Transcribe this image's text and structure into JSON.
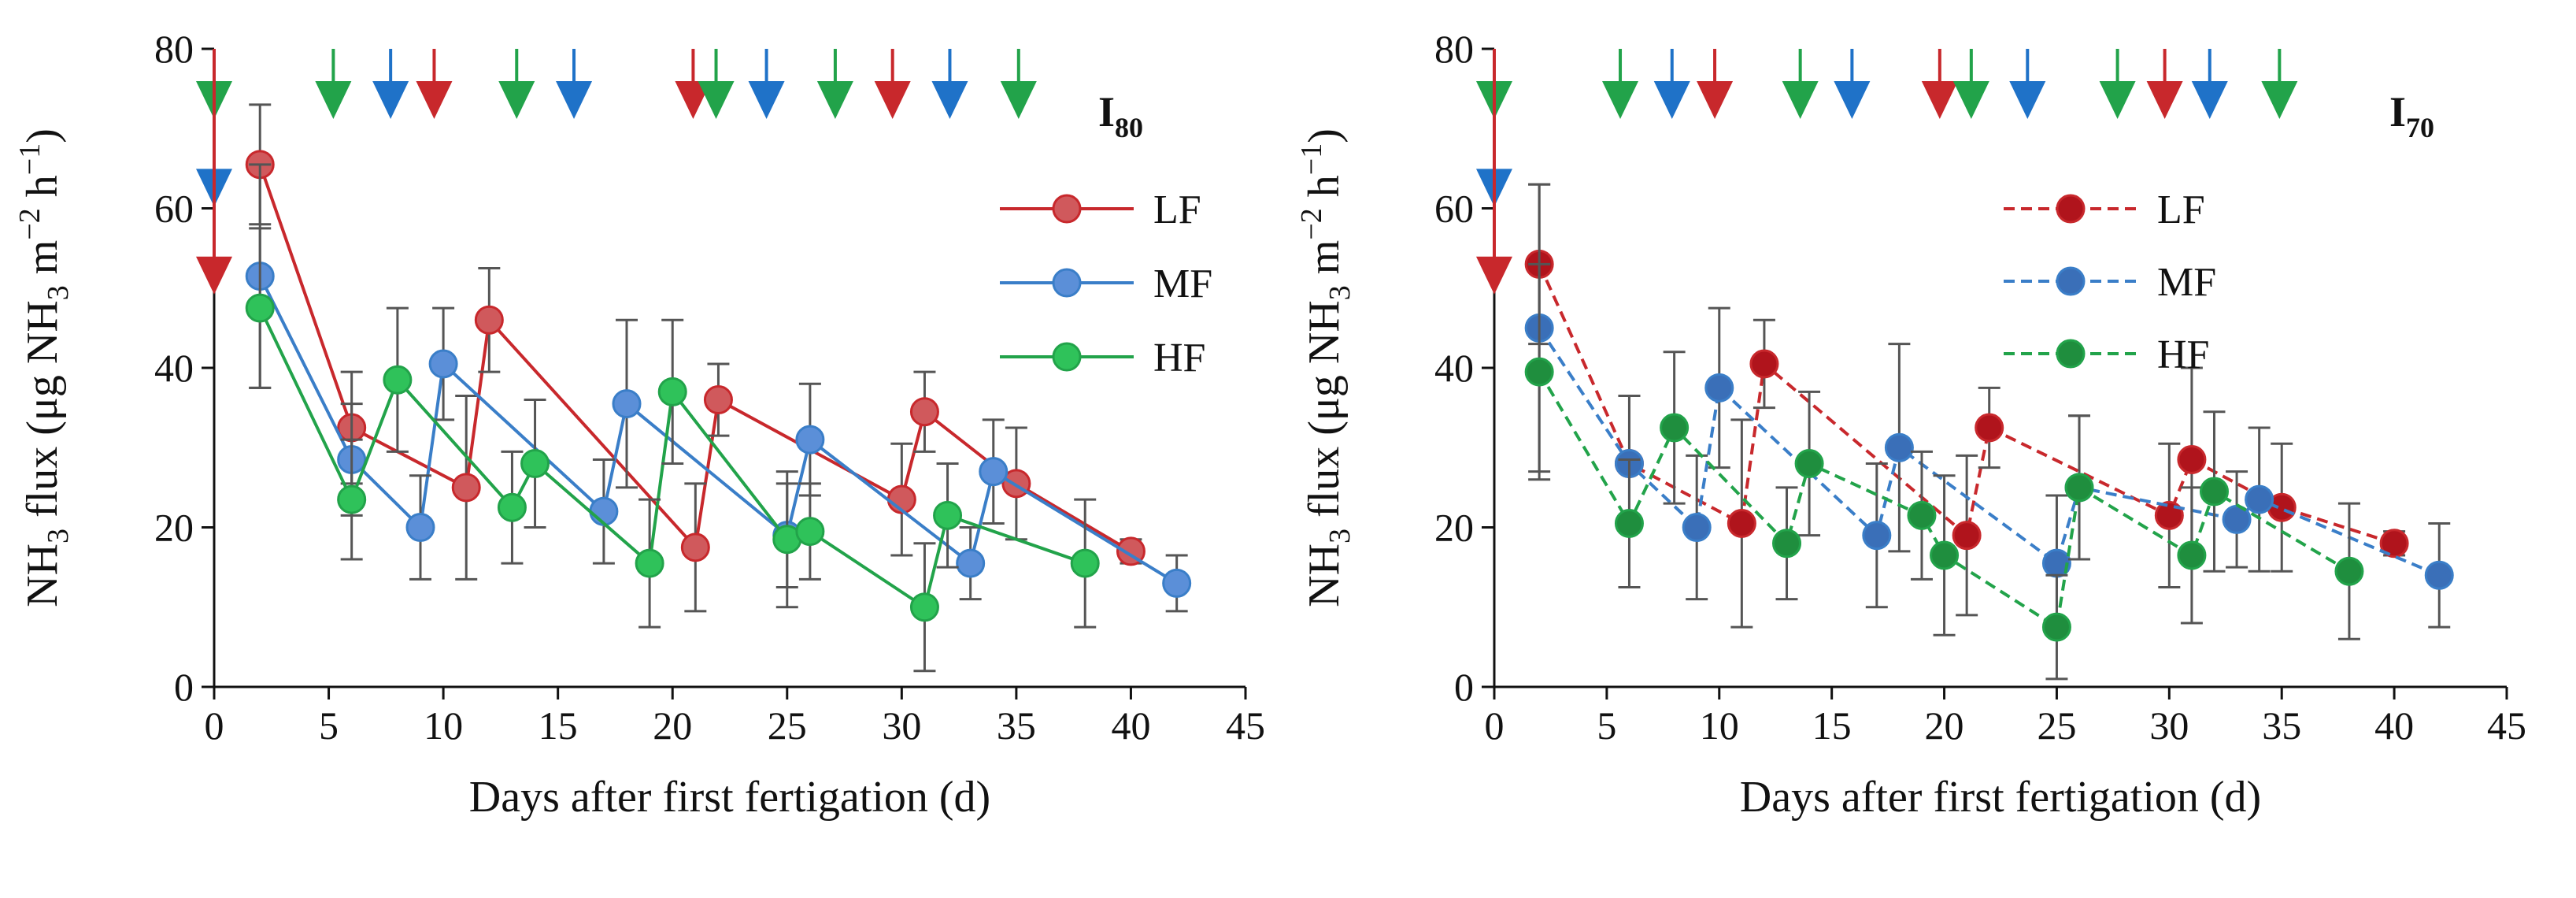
{
  "chart_data": [
    {
      "type": "line",
      "panel_label": "I",
      "panel_label_sub": "80",
      "xlabel": "Days after first fertigation (d)",
      "ylabel": {
        "part1": "NH",
        "sub1": "3",
        "part2": " flux (μg NH",
        "sub2": "3",
        "part3": " m",
        "sup1": "−2",
        "part4": " h",
        "sup2": "−1",
        "part5": ")"
      },
      "xlim": [
        0,
        45
      ],
      "ylim": [
        0,
        80
      ],
      "xticks": [
        0,
        5,
        10,
        15,
        20,
        25,
        30,
        35,
        40,
        45
      ],
      "yticks": [
        0,
        20,
        40,
        60,
        80
      ],
      "legend_position": "top-right",
      "line_style": "solid",
      "series": [
        {
          "name": "LF",
          "color": "#c8282c",
          "fill": "#d0595c",
          "x": [
            2,
            6,
            11,
            12,
            21,
            22,
            30,
            31,
            35,
            40
          ],
          "y": [
            65.5,
            32.5,
            25,
            46,
            17.5,
            36,
            23.5,
            34.5,
            25.5,
            17
          ],
          "err": [
            7.5,
            7,
            11.5,
            6.5,
            8,
            4.5,
            7,
            5,
            7,
            1.5
          ]
        },
        {
          "name": "MF",
          "color": "#3a7ec8",
          "fill": "#5b8fd8",
          "x": [
            2,
            6,
            9,
            10,
            17,
            18,
            25,
            26,
            33,
            34,
            42
          ],
          "y": [
            51.5,
            28.5,
            20,
            40.5,
            22,
            35.5,
            19,
            31,
            15.5,
            27,
            13
          ],
          "err": [
            14,
            7,
            6.5,
            7,
            6.5,
            10.5,
            6.5,
            7,
            4.5,
            6.5,
            3.5
          ]
        },
        {
          "name": "HF",
          "color": "#22a34a",
          "fill": "#2fc25a",
          "x": [
            2,
            6,
            8,
            13,
            14,
            19,
            20,
            25,
            26,
            31,
            32,
            38
          ],
          "y": [
            47.5,
            23.5,
            38.5,
            22.5,
            28,
            15.5,
            37,
            18.5,
            19.5,
            10,
            21.5,
            15.5
          ],
          "err": [
            10,
            7.5,
            9,
            7,
            8,
            8,
            9,
            8.5,
            6,
            8,
            6.5,
            8
          ]
        }
      ],
      "arrows": [
        {
          "day": 0,
          "color": "#22a34a",
          "tip": 72
        },
        {
          "day": 0,
          "color": "#1f72c8",
          "tip": 61
        },
        {
          "day": 0,
          "color": "#c8282c",
          "tip": 50
        },
        {
          "day": 5.2,
          "color": "#22a34a",
          "tip": 72
        },
        {
          "day": 7.7,
          "color": "#1f72c8",
          "tip": 72
        },
        {
          "day": 9.6,
          "color": "#c8282c",
          "tip": 72
        },
        {
          "day": 13.2,
          "color": "#22a34a",
          "tip": 72
        },
        {
          "day": 15.7,
          "color": "#1f72c8",
          "tip": 72
        },
        {
          "day": 20.9,
          "color": "#c8282c",
          "tip": 72
        },
        {
          "day": 21.9,
          "color": "#22a34a",
          "tip": 72
        },
        {
          "day": 24.1,
          "color": "#1f72c8",
          "tip": 72
        },
        {
          "day": 27.1,
          "color": "#22a34a",
          "tip": 72
        },
        {
          "day": 29.6,
          "color": "#c8282c",
          "tip": 72
        },
        {
          "day": 32.1,
          "color": "#1f72c8",
          "tip": 72
        },
        {
          "day": 35.1,
          "color": "#22a34a",
          "tip": 72
        }
      ]
    },
    {
      "type": "line",
      "panel_label": "I",
      "panel_label_sub": "70",
      "xlabel": "Days after first fertigation (d)",
      "ylabel": {
        "part1": "NH",
        "sub1": "3",
        "part2": " flux (μg  NH",
        "sub2": "3",
        "part3": " m",
        "sup1": "−2",
        "part4": " h",
        "sup2": "−1",
        "part5": ")"
      },
      "xlim": [
        0,
        45
      ],
      "ylim": [
        0,
        80
      ],
      "xticks": [
        0,
        5,
        10,
        15,
        20,
        25,
        30,
        35,
        40,
        45
      ],
      "yticks": [
        0,
        20,
        40,
        60,
        80
      ],
      "legend_position": "top-right",
      "line_style": "dashed",
      "series": [
        {
          "name": "LF",
          "color": "#c8282c",
          "fill": "#b0141c",
          "x": [
            2,
            6,
            11,
            12,
            21,
            22,
            30,
            31,
            35,
            40
          ],
          "y": [
            53,
            28,
            20.5,
            40.5,
            19,
            32.5,
            21.5,
            28.5,
            22.5,
            18
          ],
          "err": [
            10,
            8.5,
            13,
            5.5,
            10,
            5,
            9,
            11.5,
            8,
            1.5
          ]
        },
        {
          "name": "MF",
          "color": "#3a7ec8",
          "fill": "#3a6fb8",
          "x": [
            2,
            6,
            9,
            10,
            17,
            18,
            25,
            26,
            33,
            34,
            42
          ],
          "y": [
            45,
            28,
            20,
            37.5,
            19,
            30,
            15.5,
            25,
            21,
            23.5,
            14
          ],
          "err": [
            18,
            8.5,
            9,
            10,
            9,
            13,
            8.5,
            9,
            6,
            9,
            6.5
          ]
        },
        {
          "name": "HF",
          "color": "#22a34a",
          "fill": "#1f8e3e",
          "x": [
            2,
            6,
            8,
            13,
            14,
            19,
            20,
            25,
            26,
            31,
            32,
            38
          ],
          "y": [
            39.5,
            20.5,
            32.5,
            18,
            28,
            21.5,
            16.5,
            7.5,
            25,
            16.5,
            24.5,
            14.5
          ],
          "err": [
            13.5,
            8,
            9.5,
            7,
            9,
            8,
            10,
            6.5,
            9,
            8.5,
            10,
            8.5
          ]
        }
      ],
      "arrows": [
        {
          "day": 0,
          "color": "#22a34a",
          "tip": 72
        },
        {
          "day": 0,
          "color": "#1f72c8",
          "tip": 61
        },
        {
          "day": 0,
          "color": "#c8282c",
          "tip": 50
        },
        {
          "day": 5.6,
          "color": "#22a34a",
          "tip": 72
        },
        {
          "day": 7.9,
          "color": "#1f72c8",
          "tip": 72
        },
        {
          "day": 9.8,
          "color": "#c8282c",
          "tip": 72
        },
        {
          "day": 13.6,
          "color": "#22a34a",
          "tip": 72
        },
        {
          "day": 15.9,
          "color": "#1f72c8",
          "tip": 72
        },
        {
          "day": 19.8,
          "color": "#c8282c",
          "tip": 72
        },
        {
          "day": 21.2,
          "color": "#22a34a",
          "tip": 72
        },
        {
          "day": 23.7,
          "color": "#1f72c8",
          "tip": 72
        },
        {
          "day": 27.7,
          "color": "#22a34a",
          "tip": 72
        },
        {
          "day": 29.8,
          "color": "#c8282c",
          "tip": 72
        },
        {
          "day": 31.8,
          "color": "#1f72c8",
          "tip": 72
        },
        {
          "day": 34.9,
          "color": "#22a34a",
          "tip": 72
        }
      ]
    }
  ]
}
